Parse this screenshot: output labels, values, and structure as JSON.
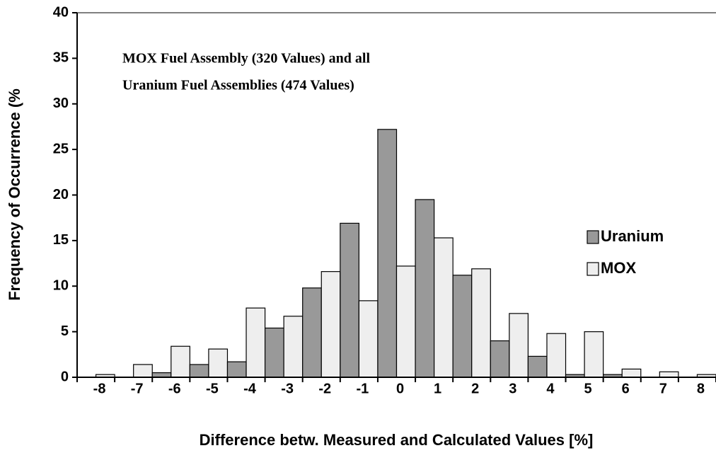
{
  "chart_data": {
    "type": "bar",
    "annotations": [
      "MOX Fuel Assembly (320 Values) and all",
      "Uranium Fuel Assemblies (474 Values)"
    ],
    "xlabel": "Difference betw. Measured and Calculated Values [%]",
    "ylabel": "Frequency of Occurrence (%",
    "categories": [
      -8,
      -7,
      -6,
      -5,
      -4,
      -3,
      -2,
      -1,
      0,
      1,
      2,
      3,
      4,
      5,
      6,
      7,
      8
    ],
    "series": [
      {
        "name": "Uranium",
        "color": "#999999",
        "values": [
          0,
          0,
          0.5,
          1.4,
          1.7,
          5.4,
          9.8,
          16.9,
          27.2,
          19.5,
          11.2,
          4.0,
          2.3,
          0.3,
          0.3,
          0,
          0
        ]
      },
      {
        "name": "MOX",
        "color": "#eeeeee",
        "values": [
          0.3,
          1.4,
          3.4,
          3.1,
          7.6,
          6.7,
          11.6,
          8.4,
          12.2,
          15.3,
          11.9,
          7.0,
          4.8,
          5.0,
          0.9,
          0.6,
          0.3
        ]
      }
    ],
    "ylim": [
      0,
      40
    ],
    "yticks": [
      0,
      5,
      10,
      15,
      20,
      25,
      30,
      35,
      40
    ],
    "legend": "right"
  }
}
